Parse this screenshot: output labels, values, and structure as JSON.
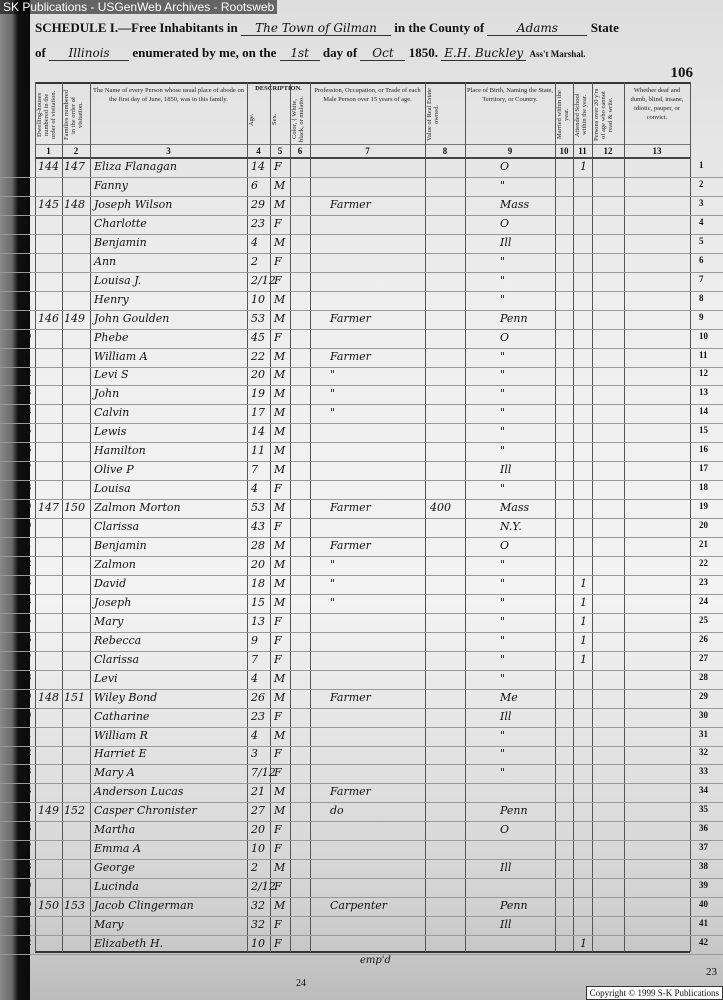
{
  "banner": "SK Publications - USGenWeb Archives - Rootsweb",
  "header": {
    "schedule": "SCHEDULE I.—Free Inhabitants in",
    "place": "The Town of Gilman",
    "county_label": "in the County of",
    "county": "Adams",
    "state_label": "State",
    "of_label": "of",
    "state": "Illinois",
    "enum_label": "enumerated by me, on the",
    "day": "1st",
    "day_label": "day of",
    "month": "Oct",
    "year": "1850.",
    "marshal": "E.H. Buckley",
    "marshal_label": "Ass't Marshal.",
    "page_number": "106"
  },
  "columns": [
    {
      "num": "1",
      "title": "Dwelling-houses numbered in the order of visitation."
    },
    {
      "num": "2",
      "title": "Families numbered in the order of visitation."
    },
    {
      "num": "3",
      "title": "The Name of every Person whose usual place of abode on the first day of June, 1850, was in this family."
    },
    {
      "num": "4",
      "title": "Age."
    },
    {
      "num": "5",
      "title": "Sex."
    },
    {
      "num": "6",
      "title": "Color, { White, black, or mulatto."
    },
    {
      "num": "7",
      "title": "Profession, Occupation, or Trade of each Male Person over 15 years of age."
    },
    {
      "num": "8",
      "title": "Value of Real Estate owned."
    },
    {
      "num": "9",
      "title": "Place of Birth, Naming the State, Territory, or Country."
    },
    {
      "num": "10",
      "title": "Married within the year."
    },
    {
      "num": "11",
      "title": "Attended School within the year."
    },
    {
      "num": "12",
      "title": "Persons over 20 y'rs of age who cannot read & write."
    },
    {
      "num": "13",
      "title": "Whether deaf and dumb, blind, insane, idiotic, pauper, or convict."
    }
  ],
  "description_label": "DESCRIPTION.",
  "rows": [
    {
      "n": "1",
      "d": "144",
      "f": "147",
      "name": "Eliza Flanagan",
      "age": "14",
      "sex": "F",
      "occ": "",
      "re": "",
      "birth": "O",
      "school": "1"
    },
    {
      "n": "2",
      "d": "",
      "f": "",
      "name": "Fanny",
      "age": "6",
      "sex": "M",
      "occ": "",
      "re": "",
      "birth": "\"",
      "school": ""
    },
    {
      "n": "3",
      "d": "145",
      "f": "148",
      "name": "Joseph Wilson",
      "age": "29",
      "sex": "M",
      "occ": "Farmer",
      "re": "",
      "birth": "Mass",
      "school": ""
    },
    {
      "n": "4",
      "d": "",
      "f": "",
      "name": "Charlotte",
      "age": "23",
      "sex": "F",
      "occ": "",
      "re": "",
      "birth": "O",
      "school": ""
    },
    {
      "n": "5",
      "d": "",
      "f": "",
      "name": "Benjamin",
      "age": "4",
      "sex": "M",
      "occ": "",
      "re": "",
      "birth": "Ill",
      "school": ""
    },
    {
      "n": "6",
      "d": "",
      "f": "",
      "name": "Ann",
      "age": "2",
      "sex": "F",
      "occ": "",
      "re": "",
      "birth": "\"",
      "school": ""
    },
    {
      "n": "7",
      "d": "",
      "f": "",
      "name": "Louisa J.",
      "age": "2/12",
      "sex": "F",
      "occ": "",
      "re": "",
      "birth": "\"",
      "school": ""
    },
    {
      "n": "8",
      "d": "",
      "f": "",
      "name": "Henry",
      "age": "10",
      "sex": "M",
      "occ": "",
      "re": "",
      "birth": "\"",
      "school": ""
    },
    {
      "n": "9",
      "d": "146",
      "f": "149",
      "name": "John Goulden",
      "age": "53",
      "sex": "M",
      "occ": "Farmer",
      "re": "",
      "birth": "Penn",
      "school": ""
    },
    {
      "n": "10",
      "d": "",
      "f": "",
      "name": "Phebe",
      "age": "45",
      "sex": "F",
      "occ": "",
      "re": "",
      "birth": "O",
      "school": ""
    },
    {
      "n": "11",
      "d": "",
      "f": "",
      "name": "William A",
      "age": "22",
      "sex": "M",
      "occ": "Farmer",
      "re": "",
      "birth": "\"",
      "school": ""
    },
    {
      "n": "12",
      "d": "",
      "f": "",
      "name": "Levi S",
      "age": "20",
      "sex": "M",
      "occ": "\"",
      "re": "",
      "birth": "\"",
      "school": ""
    },
    {
      "n": "13",
      "d": "",
      "f": "",
      "name": "John",
      "age": "19",
      "sex": "M",
      "occ": "\"",
      "re": "",
      "birth": "\"",
      "school": ""
    },
    {
      "n": "14",
      "d": "",
      "f": "",
      "name": "Calvin",
      "age": "17",
      "sex": "M",
      "occ": "\"",
      "re": "",
      "birth": "\"",
      "school": ""
    },
    {
      "n": "15",
      "d": "",
      "f": "",
      "name": "Lewis",
      "age": "14",
      "sex": "M",
      "occ": "",
      "re": "",
      "birth": "\"",
      "school": ""
    },
    {
      "n": "16",
      "d": "",
      "f": "",
      "name": "Hamilton",
      "age": "11",
      "sex": "M",
      "occ": "",
      "re": "",
      "birth": "\"",
      "school": ""
    },
    {
      "n": "17",
      "d": "",
      "f": "",
      "name": "Olive P",
      "age": "7",
      "sex": "M",
      "occ": "",
      "re": "",
      "birth": "Ill",
      "school": ""
    },
    {
      "n": "18",
      "d": "",
      "f": "",
      "name": "Louisa",
      "age": "4",
      "sex": "F",
      "occ": "",
      "re": "",
      "birth": "\"",
      "school": ""
    },
    {
      "n": "19",
      "d": "147",
      "f": "150",
      "name": "Zalmon Morton",
      "age": "53",
      "sex": "M",
      "occ": "Farmer",
      "re": "400",
      "birth": "Mass",
      "school": ""
    },
    {
      "n": "20",
      "d": "",
      "f": "",
      "name": "Clarissa",
      "age": "43",
      "sex": "F",
      "occ": "",
      "re": "",
      "birth": "N.Y.",
      "school": ""
    },
    {
      "n": "21",
      "d": "",
      "f": "",
      "name": "Benjamin",
      "age": "28",
      "sex": "M",
      "occ": "Farmer",
      "re": "",
      "birth": "O",
      "school": ""
    },
    {
      "n": "22",
      "d": "",
      "f": "",
      "name": "Zalmon",
      "age": "20",
      "sex": "M",
      "occ": "\"",
      "re": "",
      "birth": "\"",
      "school": ""
    },
    {
      "n": "23",
      "d": "",
      "f": "",
      "name": "David",
      "age": "18",
      "sex": "M",
      "occ": "\"",
      "re": "",
      "birth": "\"",
      "school": "1"
    },
    {
      "n": "24",
      "d": "",
      "f": "",
      "name": "Joseph",
      "age": "15",
      "sex": "M",
      "occ": "\"",
      "re": "",
      "birth": "\"",
      "school": "1"
    },
    {
      "n": "25",
      "d": "",
      "f": "",
      "name": "Mary",
      "age": "13",
      "sex": "F",
      "occ": "",
      "re": "",
      "birth": "\"",
      "school": "1"
    },
    {
      "n": "26",
      "d": "",
      "f": "",
      "name": "Rebecca",
      "age": "9",
      "sex": "F",
      "occ": "",
      "re": "",
      "birth": "\"",
      "school": "1"
    },
    {
      "n": "27",
      "d": "",
      "f": "",
      "name": "Clarissa",
      "age": "7",
      "sex": "F",
      "occ": "",
      "re": "",
      "birth": "\"",
      "school": "1"
    },
    {
      "n": "28",
      "d": "",
      "f": "",
      "name": "Levi",
      "age": "4",
      "sex": "M",
      "occ": "",
      "re": "",
      "birth": "\"",
      "school": ""
    },
    {
      "n": "29",
      "d": "148",
      "f": "151",
      "name": "Wiley Bond",
      "age": "26",
      "sex": "M",
      "occ": "Farmer",
      "re": "",
      "birth": "Me",
      "school": ""
    },
    {
      "n": "30",
      "d": "",
      "f": "",
      "name": "Catharine",
      "age": "23",
      "sex": "F",
      "occ": "",
      "re": "",
      "birth": "Ill",
      "school": ""
    },
    {
      "n": "31",
      "d": "",
      "f": "",
      "name": "William R",
      "age": "4",
      "sex": "M",
      "occ": "",
      "re": "",
      "birth": "\"",
      "school": ""
    },
    {
      "n": "32",
      "d": "",
      "f": "",
      "name": "Harriet E",
      "age": "3",
      "sex": "F",
      "occ": "",
      "re": "",
      "birth": "\"",
      "school": ""
    },
    {
      "n": "33",
      "d": "",
      "f": "",
      "name": "Mary A",
      "age": "7/12",
      "sex": "F",
      "occ": "",
      "re": "",
      "birth": "\"",
      "school": ""
    },
    {
      "n": "34",
      "d": "",
      "f": "",
      "name": "Anderson Lucas",
      "age": "21",
      "sex": "M",
      "occ": "Farmer",
      "re": "",
      "birth": "",
      "school": ""
    },
    {
      "n": "35",
      "d": "149",
      "f": "152",
      "name": "Casper Chronister",
      "age": "27",
      "sex": "M",
      "occ": "do",
      "re": "",
      "birth": "Penn",
      "school": ""
    },
    {
      "n": "36",
      "d": "",
      "f": "",
      "name": "Martha",
      "age": "20",
      "sex": "F",
      "occ": "",
      "re": "",
      "birth": "O",
      "school": ""
    },
    {
      "n": "37",
      "d": "",
      "f": "",
      "name": "Emma A",
      "age": "10",
      "sex": "F",
      "occ": "",
      "re": "",
      "birth": "",
      "school": ""
    },
    {
      "n": "38",
      "d": "",
      "f": "",
      "name": "George",
      "age": "2",
      "sex": "M",
      "occ": "",
      "re": "",
      "birth": "Ill",
      "school": ""
    },
    {
      "n": "39",
      "d": "",
      "f": "",
      "name": "Lucinda",
      "age": "2/12",
      "sex": "F",
      "occ": "",
      "re": "",
      "birth": "",
      "school": ""
    },
    {
      "n": "40",
      "d": "150",
      "f": "153",
      "name": "Jacob Clingerman",
      "age": "32",
      "sex": "M",
      "occ": "Carpenter",
      "re": "",
      "birth": "Penn",
      "school": ""
    },
    {
      "n": "41",
      "d": "",
      "f": "",
      "name": "Mary",
      "age": "32",
      "sex": "F",
      "occ": "",
      "re": "",
      "birth": "Ill",
      "school": ""
    },
    {
      "n": "42",
      "d": "",
      "f": "",
      "name": "Elizabeth H.",
      "age": "10",
      "sex": "F",
      "occ": "",
      "re": "",
      "birth": "",
      "school": "1"
    }
  ],
  "footer": {
    "note": "emp'd",
    "stamp": "24",
    "corner": "23",
    "copyright": "Copyright © 1999 S-K Publications"
  }
}
